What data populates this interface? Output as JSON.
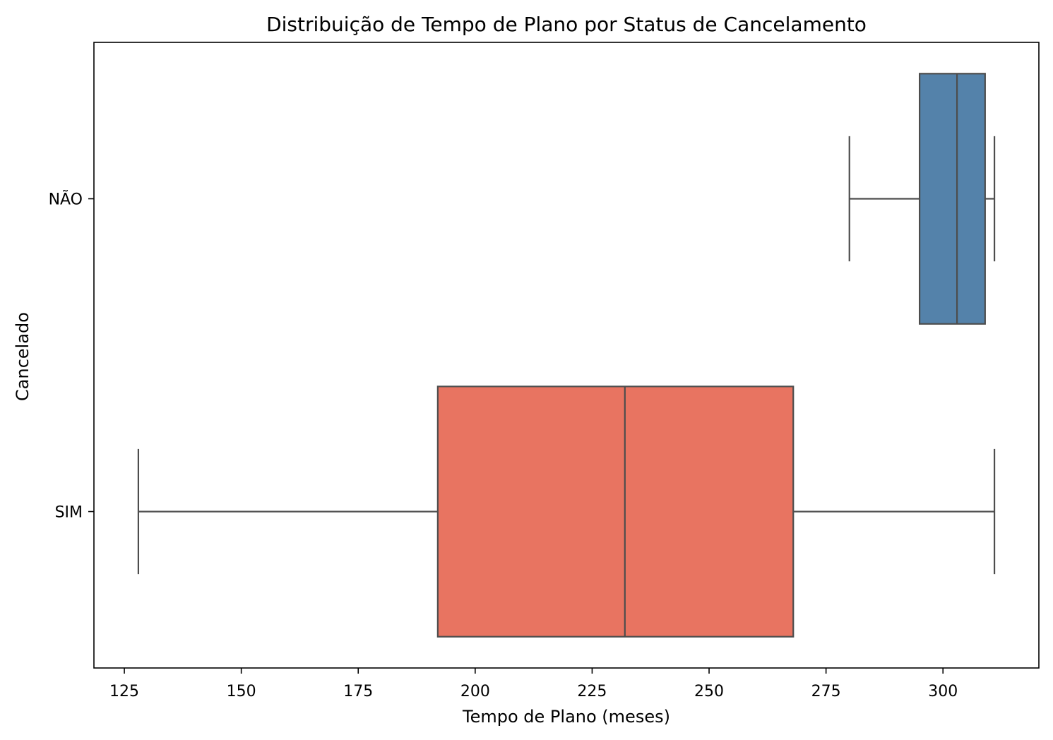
{
  "chart_data": {
    "type": "boxplot",
    "orientation": "horizontal",
    "title": "Distribuição de Tempo de Plano por Status de Cancelamento",
    "xlabel": "Tempo de Plano (meses)",
    "ylabel": "Cancelado",
    "xlim": [
      118.5,
      320.5
    ],
    "xticks": [
      125,
      150,
      175,
      200,
      225,
      250,
      275,
      300
    ],
    "grid": false,
    "categories": [
      "NÃO",
      "SIM"
    ],
    "series": [
      {
        "category": "NÃO",
        "min": 280,
        "q1": 295,
        "median": 303,
        "q3": 309,
        "max": 311,
        "color": "#5482aa"
      },
      {
        "category": "SIM",
        "min": 128,
        "q1": 192,
        "median": 232,
        "q3": 268,
        "max": 311,
        "color": "#e87461"
      }
    ],
    "line_color": "#4d4d4d"
  }
}
